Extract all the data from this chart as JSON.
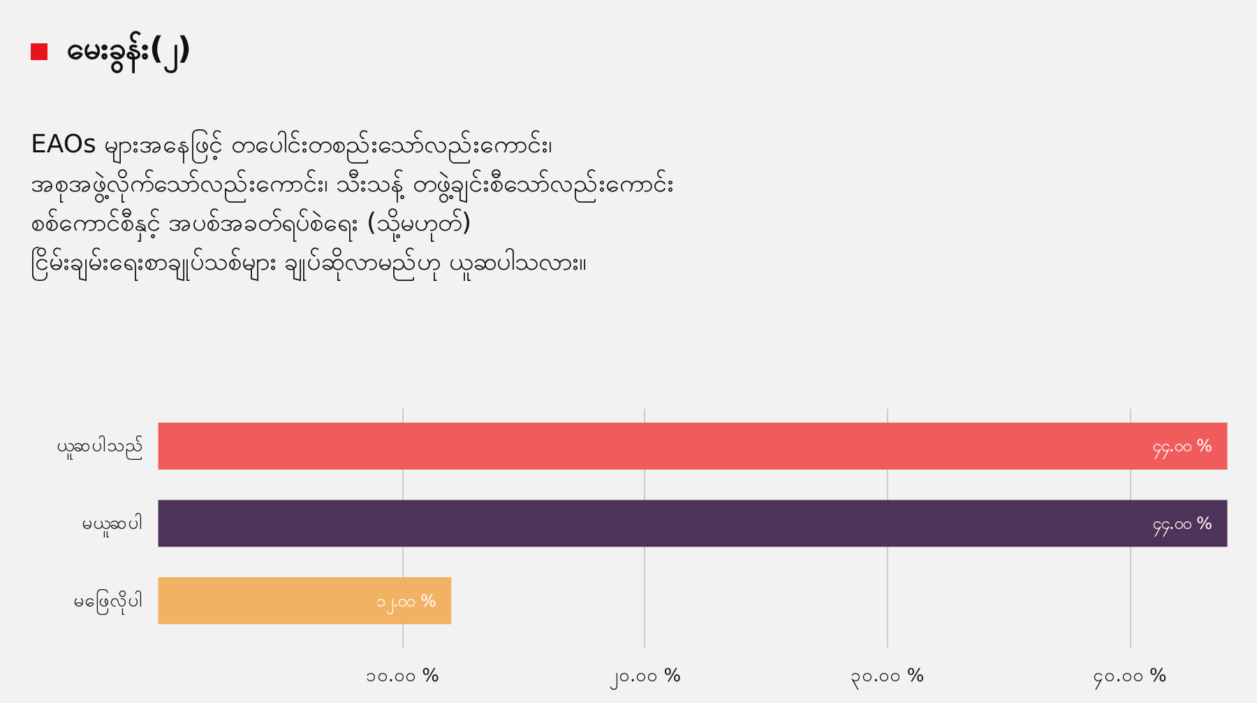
{
  "chart_data": {
    "type": "bar",
    "orientation": "horizontal",
    "title": "မေးခွန်း(၂)",
    "subtitle": "EAOs များအနေဖြင့် တပေါင်းတစည်းသော်လည်းကောင်း၊\nအစုအဖွဲ့လိုက်သော်လည်းကောင်း၊ သီးသန့် တဖွဲ့ချင်းစီသော်လည်းကောင်း\nစစ်ကောင်စီနှင့် အပစ်အခတ်ရပ်စဲရေး (သို့မဟုတ်)\nငြိမ်းချမ်းရေးစာချုပ်သစ်များ ချုပ်ဆိုလာမည်ဟု ယူဆပါသလား။",
    "categories": [
      "ယူဆပါသည်",
      "မယူဆပါ",
      "မဖြေလိုပါ"
    ],
    "values": [
      44,
      44,
      12
    ],
    "colors": [
      "#f05c5c",
      "#4e3259",
      "#f2b263"
    ],
    "value_labels": [
      "၄၄.၀၀ %",
      "၄၄.၀၀ %",
      "၁၂.၀၀ %"
    ],
    "xlim": [
      0,
      44
    ],
    "xticks": [
      {
        "value": 10,
        "label": "၁၀.၀၀ %"
      },
      {
        "value": 20,
        "label": "၂၀.၀၀ %"
      },
      {
        "value": 30,
        "label": "၃၀.၀၀ %"
      },
      {
        "value": 40,
        "label": "၄၀.၀၀ %"
      }
    ],
    "grid": "x"
  }
}
